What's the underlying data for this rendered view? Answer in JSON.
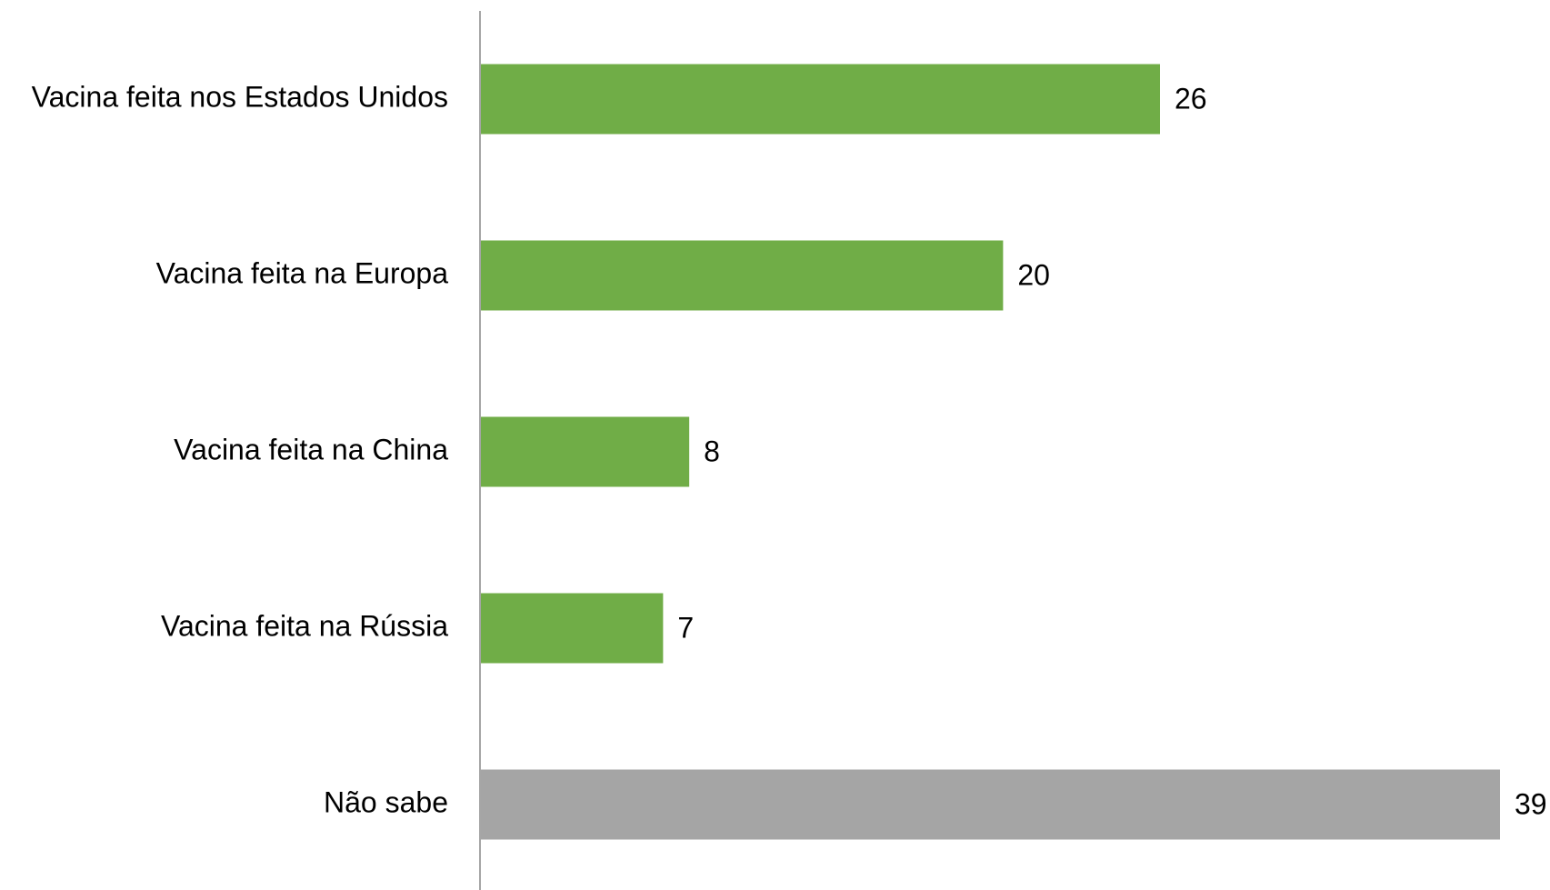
{
  "chart_data": {
    "type": "barh",
    "categories": [
      "Vacina feita nos Estados Unidos",
      "Vacina feita na Europa",
      "Vacina feita na China",
      "Vacina feita na Rússia",
      "Não sabe"
    ],
    "values": [
      26,
      20,
      8,
      7,
      39
    ],
    "colors": [
      "#70ad47",
      "#70ad47",
      "#70ad47",
      "#70ad47",
      "#a5a5a5"
    ]
  }
}
